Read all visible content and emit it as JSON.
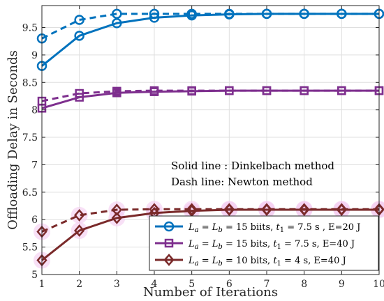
{
  "chart_data": {
    "type": "line",
    "xlabel": "Number of Iterations",
    "ylabel": "Offloading Delay in Seconds",
    "xlim": [
      1,
      10
    ],
    "ylim": [
      5,
      9.9
    ],
    "x": [
      1,
      2,
      3,
      4,
      5,
      6,
      7,
      8,
      9,
      10
    ],
    "xticks": [
      "1",
      "2",
      "3",
      "4",
      "5",
      "6",
      "7",
      "8",
      "9",
      "10"
    ],
    "yticks": [
      5,
      5.5,
      6,
      6.5,
      7,
      7.5,
      8,
      8.5,
      9,
      9.5
    ],
    "ytick_labels": [
      "5",
      "5.5",
      "6",
      "6.5",
      "7",
      "7.5",
      "8",
      "8.5",
      "9",
      "9.5"
    ],
    "grid": true,
    "annotations": [
      "Solid line : Dinkelbach method",
      "Dash line: Newton method"
    ],
    "legend_position": "bottom-right",
    "series": [
      {
        "legend": {
          "a": "L",
          "asub": "a",
          "b": "L",
          "bsub": "b",
          "rest1": " = 15 biits, ",
          "t": "t",
          "tsub": "1",
          "rest2": " = 7.5 s , E=20 J"
        },
        "color": "#0072BD",
        "marker": "circle",
        "solid": [
          8.8,
          9.35,
          9.58,
          9.68,
          9.72,
          9.74,
          9.75,
          9.75,
          9.75,
          9.75
        ],
        "dashed": [
          9.3,
          9.64,
          9.75,
          9.75,
          9.75,
          9.75,
          9.75,
          9.75,
          9.75,
          9.75
        ]
      },
      {
        "legend": {
          "a": "L",
          "asub": "a",
          "b": "L",
          "bsub": "b",
          "rest1": " = 15 bits, ",
          "t": "t",
          "tsub": "1",
          "rest2": " = 7.5 s, E=40 J"
        },
        "color": "#7E2F8E",
        "marker": "square",
        "solid": [
          8.03,
          8.23,
          8.31,
          8.33,
          8.34,
          8.35,
          8.35,
          8.35,
          8.35,
          8.35
        ],
        "dashed": [
          8.16,
          8.3,
          8.34,
          8.35,
          8.35,
          8.35,
          8.35,
          8.35,
          8.35,
          8.35
        ]
      },
      {
        "legend": {
          "a": "L",
          "asub": "a",
          "b": "L",
          "bsub": "b",
          "rest1": " = 10 bits, ",
          "t": "t",
          "tsub": "1",
          "rest2": " = 4 s, E=40 J"
        },
        "color": "#7A2A2A",
        "marker": "diamond",
        "solid": [
          5.26,
          5.8,
          6.03,
          6.12,
          6.16,
          6.18,
          6.18,
          6.18,
          6.18,
          6.18
        ],
        "dashed": [
          5.78,
          6.08,
          6.18,
          6.19,
          6.19,
          6.19,
          6.19,
          6.19,
          6.19,
          6.19
        ]
      }
    ]
  }
}
